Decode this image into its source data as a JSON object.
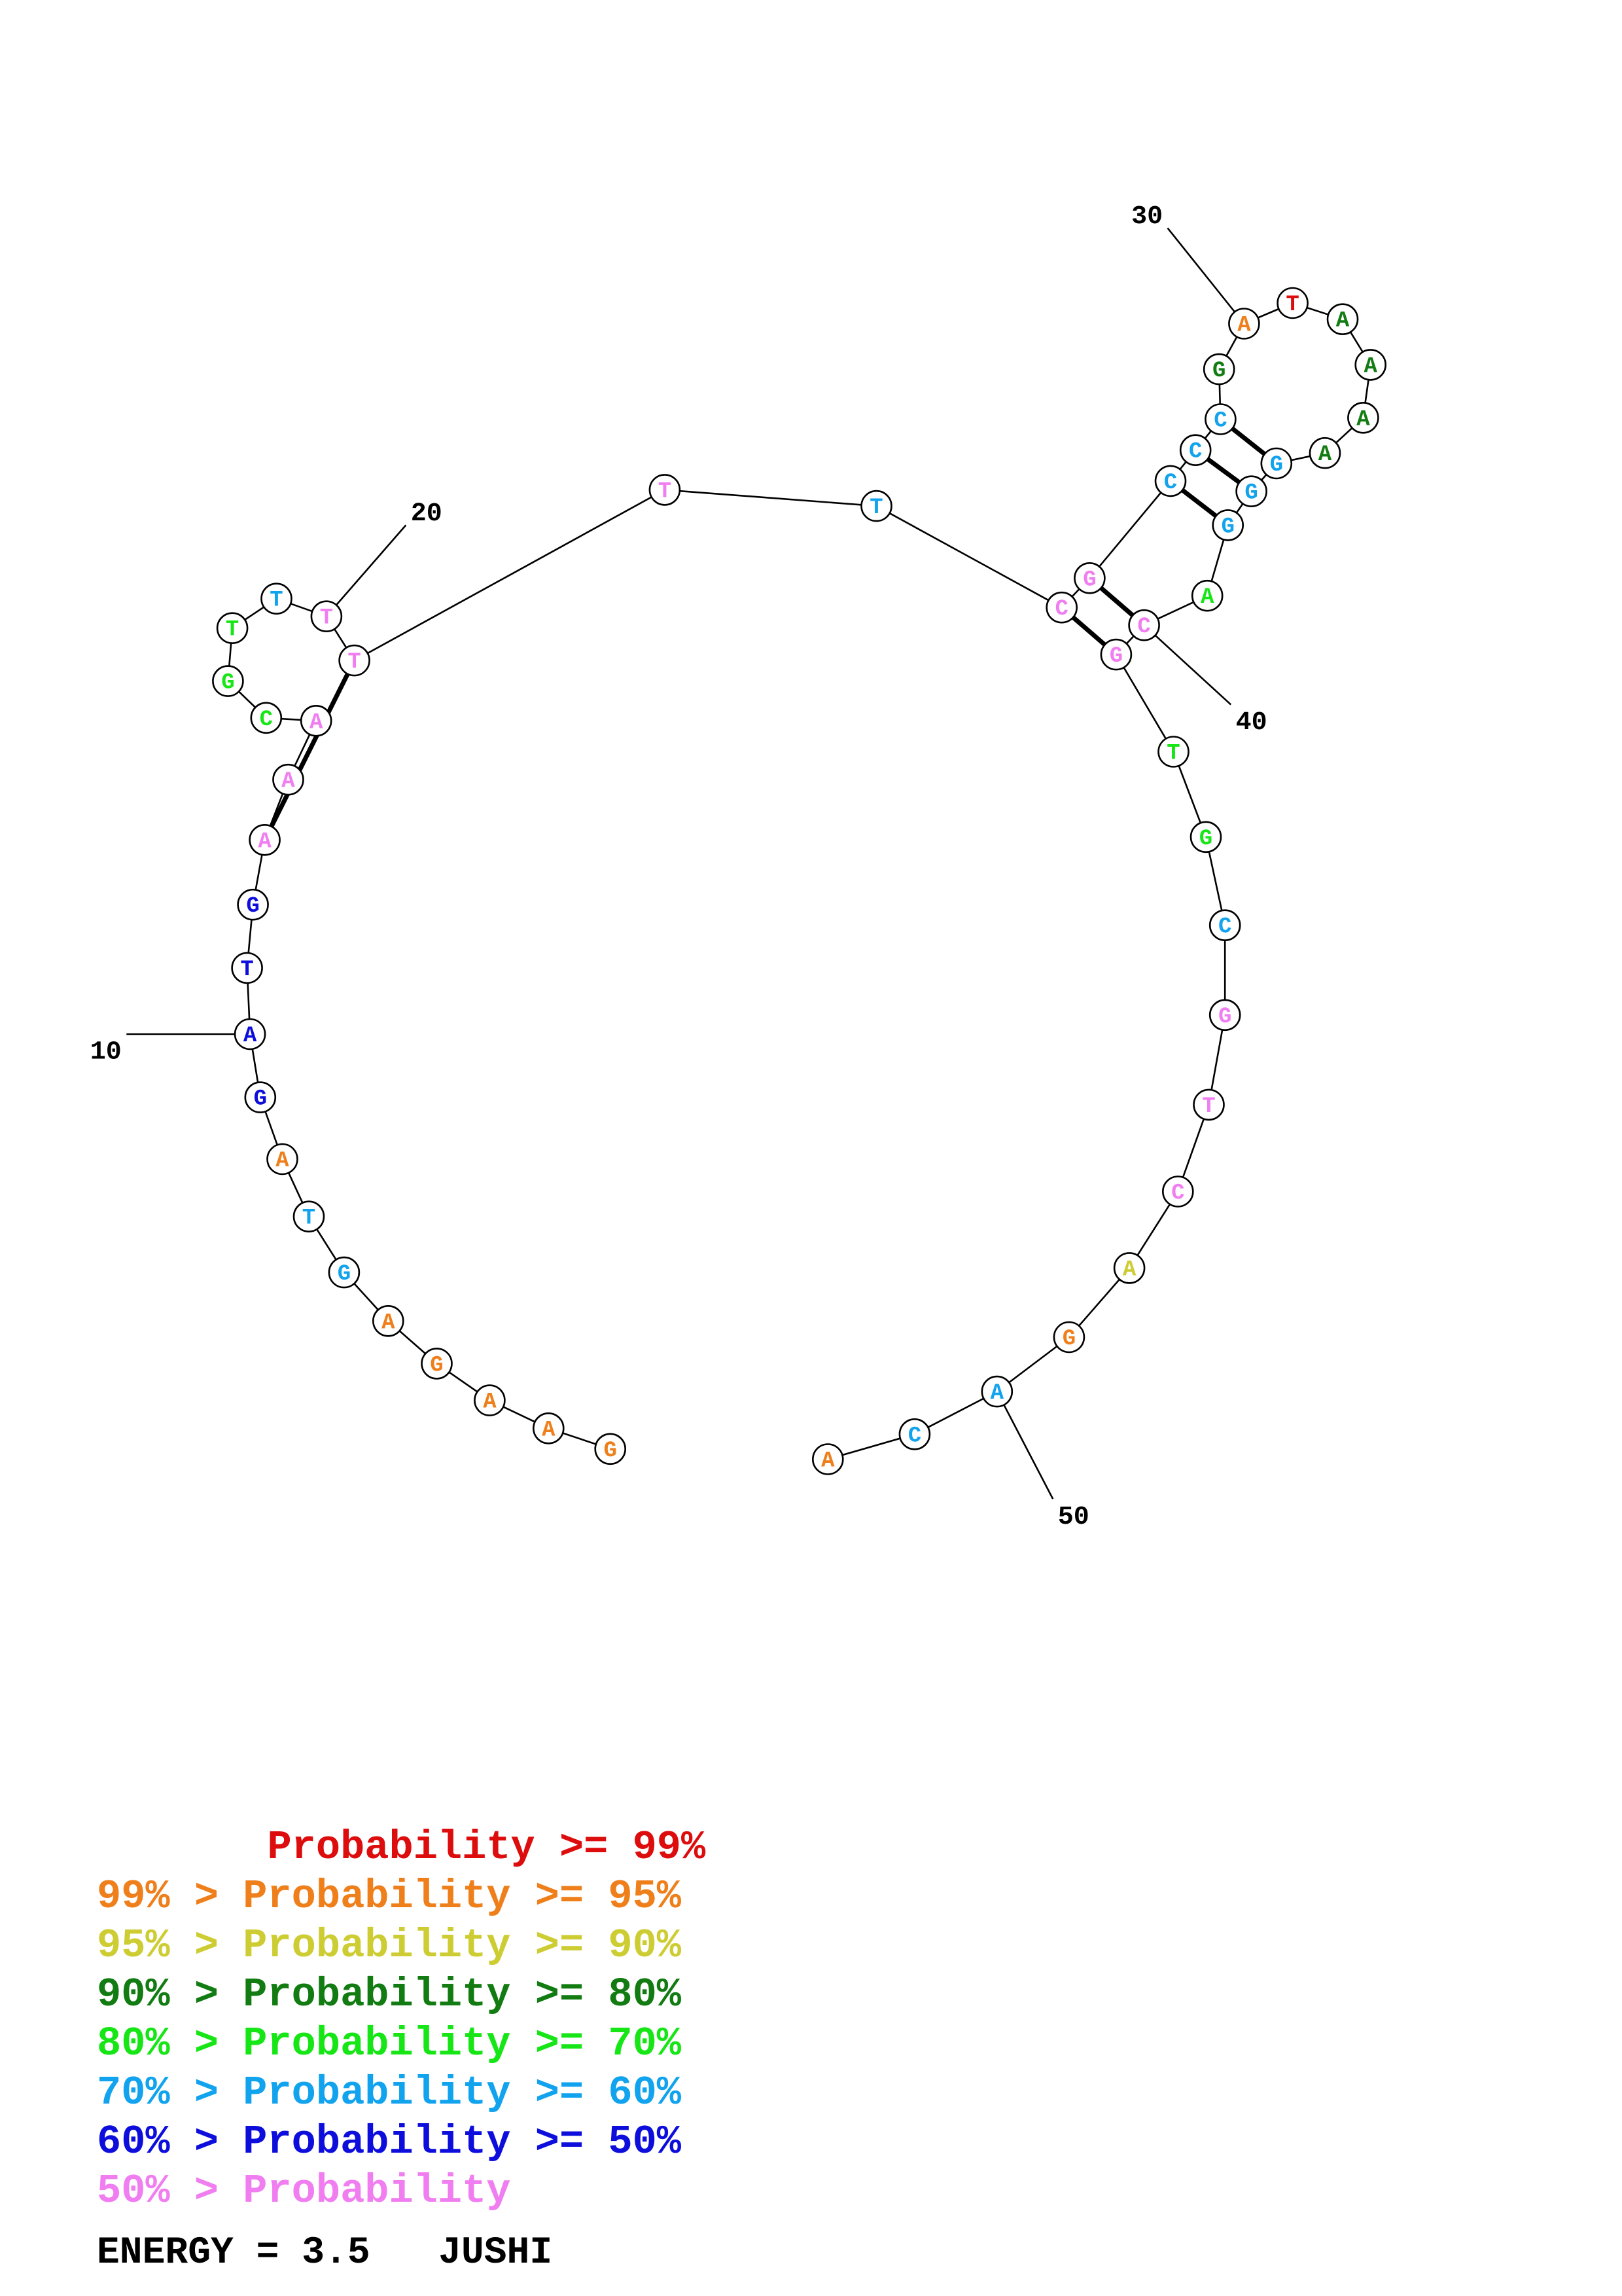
{
  "structure": {
    "nucleotides": [
      {
        "n": 1,
        "base": "G",
        "cls": "c95"
      },
      {
        "n": 2,
        "base": "A",
        "cls": "c95"
      },
      {
        "n": 3,
        "base": "A",
        "cls": "c95"
      },
      {
        "n": 4,
        "base": "G",
        "cls": "c95"
      },
      {
        "n": 5,
        "base": "A",
        "cls": "c95"
      },
      {
        "n": 6,
        "base": "G",
        "cls": "c60"
      },
      {
        "n": 7,
        "base": "T",
        "cls": "c60"
      },
      {
        "n": 8,
        "base": "A",
        "cls": "c95"
      },
      {
        "n": 9,
        "base": "G",
        "cls": "c50"
      },
      {
        "n": 10,
        "base": "A",
        "cls": "c50"
      },
      {
        "n": 11,
        "base": "T",
        "cls": "c50"
      },
      {
        "n": 12,
        "base": "G",
        "cls": "c50"
      },
      {
        "n": 13,
        "base": "A",
        "cls": "clow"
      },
      {
        "n": 14,
        "base": "A",
        "cls": "clow"
      },
      {
        "n": 15,
        "base": "A",
        "cls": "clow"
      },
      {
        "n": 16,
        "base": "C",
        "cls": "c70"
      },
      {
        "n": 17,
        "base": "G",
        "cls": "c70"
      },
      {
        "n": 18,
        "base": "T",
        "cls": "c70"
      },
      {
        "n": 19,
        "base": "T",
        "cls": "c60"
      },
      {
        "n": 20,
        "base": "T",
        "cls": "clow"
      },
      {
        "n": 21,
        "base": "T",
        "cls": "clow"
      },
      {
        "n": 22,
        "base": "T",
        "cls": "clow"
      },
      {
        "n": 23,
        "base": "T",
        "cls": "c60"
      },
      {
        "n": 24,
        "base": "C",
        "cls": "clow"
      },
      {
        "n": 25,
        "base": "G",
        "cls": "clow"
      },
      {
        "n": 26,
        "base": "C",
        "cls": "c60"
      },
      {
        "n": 27,
        "base": "C",
        "cls": "c60"
      },
      {
        "n": 28,
        "base": "C",
        "cls": "c60"
      },
      {
        "n": 29,
        "base": "G",
        "cls": "c80"
      },
      {
        "n": 30,
        "base": "A",
        "cls": "c95"
      },
      {
        "n": 31,
        "base": "T",
        "cls": "c99"
      },
      {
        "n": 32,
        "base": "A",
        "cls": "c80"
      },
      {
        "n": 33,
        "base": "A",
        "cls": "c80"
      },
      {
        "n": 34,
        "base": "A",
        "cls": "c80"
      },
      {
        "n": 35,
        "base": "A",
        "cls": "c80"
      },
      {
        "n": 36,
        "base": "G",
        "cls": "c60"
      },
      {
        "n": 37,
        "base": "G",
        "cls": "c60"
      },
      {
        "n": 38,
        "base": "G",
        "cls": "c60"
      },
      {
        "n": 39,
        "base": "A",
        "cls": "c70"
      },
      {
        "n": 40,
        "base": "C",
        "cls": "clow"
      },
      {
        "n": 41,
        "base": "G",
        "cls": "clow"
      },
      {
        "n": 42,
        "base": "T",
        "cls": "c70"
      },
      {
        "n": 43,
        "base": "G",
        "cls": "c70"
      },
      {
        "n": 44,
        "base": "C",
        "cls": "c60"
      },
      {
        "n": 45,
        "base": "G",
        "cls": "clow"
      },
      {
        "n": 46,
        "base": "T",
        "cls": "clow"
      },
      {
        "n": 47,
        "base": "C",
        "cls": "clow"
      },
      {
        "n": 48,
        "base": "A",
        "cls": "c90"
      },
      {
        "n": 49,
        "base": "G",
        "cls": "c95"
      },
      {
        "n": 50,
        "base": "A",
        "cls": "c60"
      },
      {
        "n": 51,
        "base": "C",
        "cls": "c60"
      },
      {
        "n": 52,
        "base": "A",
        "cls": "c95"
      }
    ],
    "pairs": [
      [
        13,
        21
      ],
      [
        24,
        41
      ],
      [
        25,
        40
      ],
      [
        26,
        38
      ],
      [
        27,
        37
      ],
      [
        28,
        36
      ]
    ],
    "position_labels": [
      {
        "n": 10,
        "text": "10"
      },
      {
        "n": 20,
        "text": "20"
      },
      {
        "n": 30,
        "text": "30"
      },
      {
        "n": 40,
        "text": "40"
      },
      {
        "n": 50,
        "text": "50"
      }
    ]
  },
  "colors": {
    "c99": "#dd0d0d",
    "c95": "#ef7f1b",
    "c90": "#cdcd33",
    "c80": "#127c12",
    "c70": "#16e616",
    "c60": "#12a3ee",
    "c50": "#0e0edc",
    "clow": "#f07ef0"
  },
  "legend": [
    {
      "prefix": "",
      "mid": "Probability",
      "suffix": ">= 99%",
      "color": "#dd0d0d"
    },
    {
      "prefix": "99% >",
      "mid": "Probability",
      "suffix": ">= 95%",
      "color": "#ef7f1b"
    },
    {
      "prefix": "95% >",
      "mid": "Probability",
      "suffix": ">= 90%",
      "color": "#cdcd33"
    },
    {
      "prefix": "90% >",
      "mid": "Probability",
      "suffix": ">= 80%",
      "color": "#127c12"
    },
    {
      "prefix": "80% >",
      "mid": "Probability",
      "suffix": ">= 70%",
      "color": "#16e616"
    },
    {
      "prefix": "70% >",
      "mid": "Probability",
      "suffix": ">= 60%",
      "color": "#12a3ee"
    },
    {
      "prefix": "60% >",
      "mid": "Probability",
      "suffix": ">= 50%",
      "color": "#0e0edc"
    },
    {
      "prefix": "50% >",
      "mid": "Probability",
      "suffix": "",
      "color": "#f07ef0"
    }
  ],
  "energy": {
    "label": "ENERGY = 3.5",
    "name": "JUSHI"
  }
}
